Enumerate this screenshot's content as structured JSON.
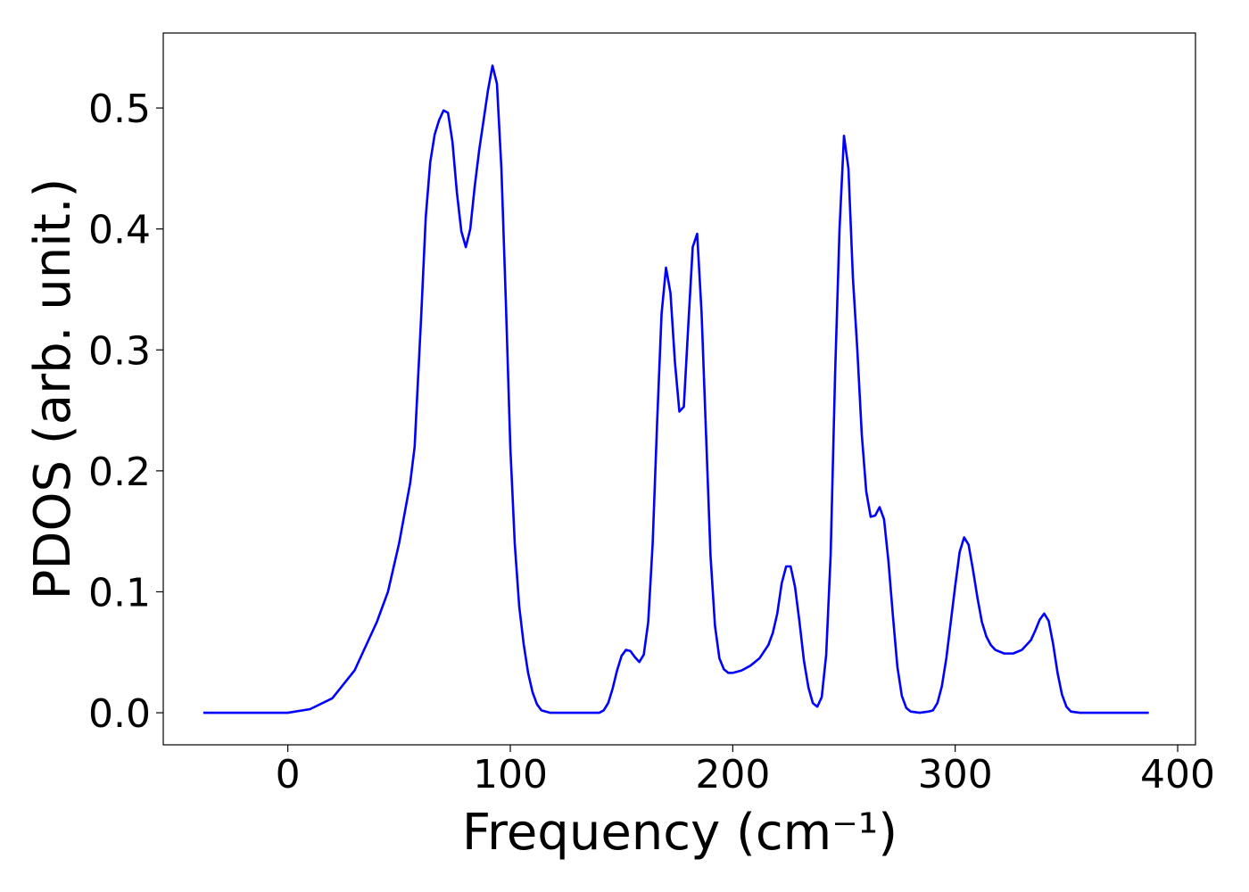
{
  "chart_data": {
    "type": "line",
    "xlabel": "Frequency (cm⁻¹)",
    "ylabel": "PDOS (arb. unit.)",
    "xlim": [
      -56,
      408
    ],
    "ylim": [
      -0.0265,
      0.562
    ],
    "xticks": [
      0,
      100,
      200,
      300,
      400
    ],
    "yticks": [
      {
        "value": 0,
        "label": "0.0"
      },
      0.1,
      0.2,
      0.3,
      0.4,
      0.5
    ],
    "x": [
      -38,
      0,
      10,
      20,
      30,
      40,
      45,
      50,
      55,
      57,
      60,
      62,
      64,
      66,
      68,
      70,
      72,
      74,
      76,
      78,
      80,
      82,
      84,
      86,
      88,
      90,
      92,
      94,
      96,
      98,
      100,
      102,
      104,
      106,
      108,
      110,
      112,
      114,
      118,
      140,
      142,
      144,
      146,
      148,
      150,
      152,
      154,
      156,
      158,
      160,
      162,
      164,
      166,
      168,
      170,
      172,
      174,
      176,
      178,
      180,
      182,
      184,
      186,
      188,
      190,
      192,
      194,
      196,
      198,
      200,
      204,
      208,
      212,
      216,
      218,
      220,
      222,
      224,
      226,
      228,
      230,
      232,
      234,
      236,
      238,
      240,
      242,
      244,
      246,
      248,
      250,
      252,
      254,
      256,
      258,
      260,
      262,
      264,
      266,
      268,
      270,
      272,
      274,
      276,
      278,
      280,
      284,
      288,
      290,
      292,
      294,
      296,
      298,
      300,
      302,
      304,
      306,
      308,
      310,
      312,
      314,
      316,
      318,
      322,
      326,
      330,
      334,
      336,
      338,
      340,
      342,
      344,
      346,
      348,
      350,
      352,
      356,
      387
    ],
    "series": [
      {
        "name": "PDOS",
        "color": "#0000ff",
        "values": [
          0,
          0,
          0.003,
          0.012,
          0.035,
          0.075,
          0.1,
          0.14,
          0.19,
          0.22,
          0.33,
          0.41,
          0.455,
          0.478,
          0.49,
          0.498,
          0.496,
          0.472,
          0.43,
          0.398,
          0.385,
          0.4,
          0.435,
          0.465,
          0.49,
          0.515,
          0.535,
          0.52,
          0.45,
          0.34,
          0.22,
          0.14,
          0.088,
          0.057,
          0.033,
          0.017,
          0.007,
          0.002,
          0,
          0,
          0.002,
          0.008,
          0.02,
          0.035,
          0.047,
          0.052,
          0.051,
          0.046,
          0.042,
          0.048,
          0.075,
          0.14,
          0.24,
          0.33,
          0.368,
          0.347,
          0.29,
          0.249,
          0.253,
          0.32,
          0.385,
          0.396,
          0.33,
          0.23,
          0.13,
          0.072,
          0.045,
          0.036,
          0.033,
          0.033,
          0.035,
          0.039,
          0.045,
          0.056,
          0.066,
          0.082,
          0.107,
          0.121,
          0.121,
          0.104,
          0.075,
          0.043,
          0.021,
          0.008,
          0.005,
          0.013,
          0.048,
          0.13,
          0.28,
          0.4,
          0.477,
          0.45,
          0.36,
          0.3,
          0.23,
          0.183,
          0.162,
          0.163,
          0.17,
          0.16,
          0.125,
          0.08,
          0.038,
          0.014,
          0.004,
          0.001,
          0,
          0.001,
          0.002,
          0.008,
          0.022,
          0.045,
          0.075,
          0.105,
          0.133,
          0.145,
          0.139,
          0.118,
          0.095,
          0.075,
          0.063,
          0.056,
          0.052,
          0.049,
          0.049,
          0.052,
          0.06,
          0.068,
          0.077,
          0.082,
          0.076,
          0.057,
          0.033,
          0.015,
          0.005,
          0.001,
          0,
          0
        ]
      }
    ]
  }
}
